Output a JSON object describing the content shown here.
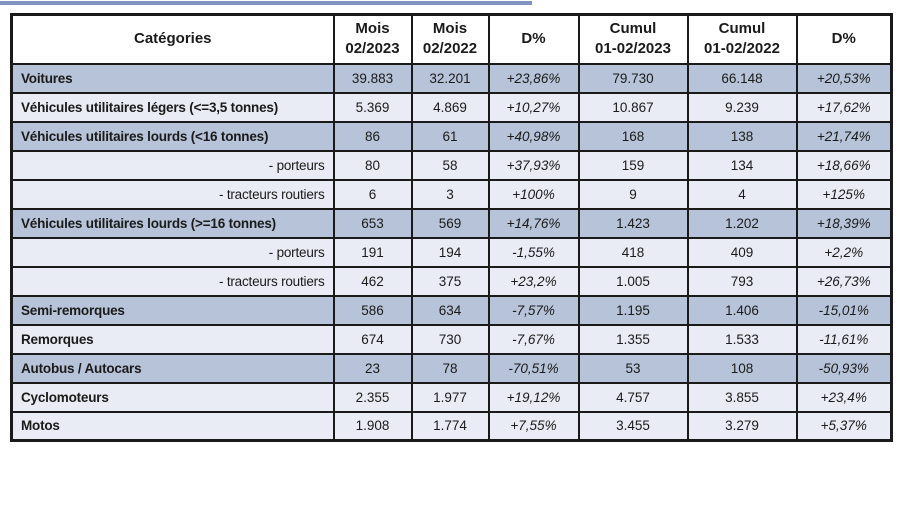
{
  "accent_bar": {
    "color": "#8193bf"
  },
  "table": {
    "colors": {
      "dark_row": "#b7c3d8",
      "light_row": "#e9ecf4",
      "border": "#1a1a1a",
      "header_bg": "#ffffff",
      "text": "#1a1a1a"
    },
    "columns": [
      {
        "label": "Catégories"
      },
      {
        "label": "Mois\n02/2023"
      },
      {
        "label": "Mois\n02/2022"
      },
      {
        "label": "D%"
      },
      {
        "label": "Cumul\n01-02/2023"
      },
      {
        "label": "Cumul\n01-02/2022"
      },
      {
        "label": "D%"
      }
    ],
    "rows": [
      {
        "label": "Voitures",
        "shade": "dark",
        "align": "left",
        "bold": true,
        "values": [
          "39.883",
          "32.201",
          "+23,86%",
          "79.730",
          "66.148",
          "+20,53%"
        ]
      },
      {
        "label": "Véhicules utilitaires légers (<=3,5 tonnes)",
        "shade": "light",
        "align": "left",
        "bold": true,
        "values": [
          "5.369",
          "4.869",
          "+10,27%",
          "10.867",
          "9.239",
          "+17,62%"
        ]
      },
      {
        "label": "Véhicules utilitaires lourds (<16 tonnes)",
        "shade": "dark",
        "align": "left",
        "bold": true,
        "values": [
          "86",
          "61",
          "+40,98%",
          "168",
          "138",
          "+21,74%"
        ]
      },
      {
        "label": "- porteurs",
        "shade": "light",
        "align": "right",
        "bold": false,
        "values": [
          "80",
          "58",
          "+37,93%",
          "159",
          "134",
          "+18,66%"
        ]
      },
      {
        "label": "- tracteurs routiers",
        "shade": "light",
        "align": "right",
        "bold": false,
        "values": [
          "6",
          "3",
          "+100%",
          "9",
          "4",
          "+125%"
        ]
      },
      {
        "label": "Véhicules utilitaires lourds (>=16 tonnes)",
        "shade": "dark",
        "align": "left",
        "bold": true,
        "values": [
          "653",
          "569",
          "+14,76%",
          "1.423",
          "1.202",
          "+18,39%"
        ]
      },
      {
        "label": "- porteurs",
        "shade": "light",
        "align": "right",
        "bold": false,
        "values": [
          "191",
          "194",
          "-1,55%",
          "418",
          "409",
          "+2,2%"
        ]
      },
      {
        "label": "- tracteurs routiers",
        "shade": "light",
        "align": "right",
        "bold": false,
        "values": [
          "462",
          "375",
          "+23,2%",
          "1.005",
          "793",
          "+26,73%"
        ]
      },
      {
        "label": "Semi-remorques",
        "shade": "dark",
        "align": "left",
        "bold": true,
        "values": [
          "586",
          "634",
          "-7,57%",
          "1.195",
          "1.406",
          "-15,01%"
        ]
      },
      {
        "label": "Remorques",
        "shade": "light",
        "align": "left",
        "bold": true,
        "values": [
          "674",
          "730",
          "-7,67%",
          "1.355",
          "1.533",
          "-11,61%"
        ]
      },
      {
        "label": "Autobus / Autocars",
        "shade": "dark",
        "align": "left",
        "bold": true,
        "values": [
          "23",
          "78",
          "-70,51%",
          "53",
          "108",
          "-50,93%"
        ]
      },
      {
        "label": "Cyclomoteurs",
        "shade": "light",
        "align": "left",
        "bold": true,
        "values": [
          "2.355",
          "1.977",
          "+19,12%",
          "4.757",
          "3.855",
          "+23,4%"
        ]
      },
      {
        "label": "Motos",
        "shade": "light",
        "align": "left",
        "bold": true,
        "values": [
          "1.908",
          "1.774",
          "+7,55%",
          "3.455",
          "3.279",
          "+5,37%"
        ]
      }
    ]
  }
}
